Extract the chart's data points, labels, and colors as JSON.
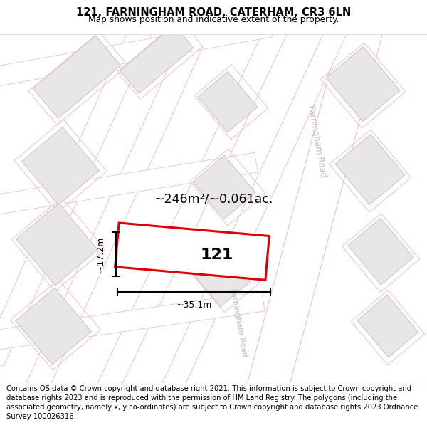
{
  "title": "121, FARNINGHAM ROAD, CATERHAM, CR3 6LN",
  "subtitle": "Map shows position and indicative extent of the property.",
  "footer": "Contains OS data © Crown copyright and database right 2021. This information is subject to Crown copyright and database rights 2023 and is reproduced with the permission of HM Land Registry. The polygons (including the associated geometry, namely x, y co-ordinates) are subject to Crown copyright and database rights 2023 Ordnance Survey 100026316.",
  "area_label": "~246m²/~0.061ac.",
  "width_label": "~35.1m",
  "height_label": "~17.2m",
  "plot_number": "121",
  "map_bg": "#f7f7f7",
  "road_fill": "#ffffff",
  "road_outline": "#f0b8b8",
  "building_fill": "#e8e6e6",
  "building_outline": "#c8c4c4",
  "plot_fill": "#ffffff",
  "plot_outline": "#dd0000",
  "road_text_color": "#c0bcbc",
  "dim_color": "#000000"
}
